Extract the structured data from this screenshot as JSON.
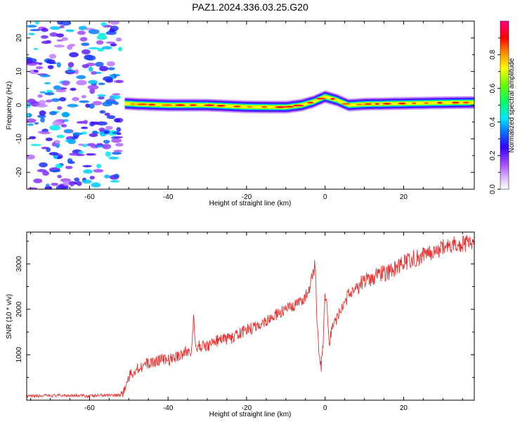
{
  "title": "PAZ1.2024.336.03.25.G20",
  "chart_data": [
    {
      "type": "heatmap",
      "xlabel": "Height of straight line (km)",
      "ylabel": "Frequency (Hz)",
      "xlim": [
        -76,
        38
      ],
      "ylim": [
        -25,
        25
      ],
      "xticks": [
        -60,
        -40,
        -20,
        0,
        20
      ],
      "yticks": [
        -20,
        -10,
        0,
        10,
        20
      ],
      "colorbar": {
        "label": "Normalized spectral amplitude",
        "ticks": [
          0.0,
          0.2,
          0.4,
          0.6,
          0.8
        ],
        "range": [
          0,
          1
        ],
        "colormap": "white-purple-blue-cyan-green-yellow-red-magenta"
      },
      "signal_ridge": {
        "x": [
          -51,
          -48,
          -40,
          -30,
          -20,
          -10,
          -6,
          -3,
          0,
          3,
          6,
          10,
          20,
          30,
          38
        ],
        "frequency": [
          0.5,
          0.3,
          0.0,
          0.0,
          -0.5,
          -0.6,
          0.0,
          1.0,
          2.5,
          1.5,
          0.0,
          0.3,
          0.5,
          0.7,
          0.8
        ],
        "peak_amplitude": 0.95
      },
      "noise_region": {
        "x_range": [
          -76,
          -52
        ],
        "freq_range": [
          -25,
          25
        ],
        "amplitude_range": [
          0.1,
          0.45
        ]
      },
      "grid": false
    },
    {
      "type": "line",
      "xlabel": "Height of straight line (km)",
      "ylabel": "SNR (10 * v/v)",
      "xlim": [
        -76,
        38
      ],
      "ylim": [
        0,
        3700
      ],
      "xticks": [
        -60,
        -40,
        -20,
        0,
        20
      ],
      "yticks": [
        1000,
        2000,
        3000
      ],
      "series_color": "#e8312f",
      "series": [
        {
          "x": [
            -76,
            -70,
            -65,
            -60,
            -55,
            -52,
            -51,
            -50,
            -48,
            -46,
            -44,
            -42,
            -40,
            -38,
            -36,
            -34,
            -33.5,
            -33,
            -32,
            -30,
            -28,
            -26,
            -24,
            -22,
            -20,
            -18,
            -16,
            -14,
            -12,
            -10,
            -8,
            -6,
            -5,
            -4,
            -3,
            -2.5,
            -2,
            -1.5,
            -1,
            -0.5,
            0,
            0.5,
            1,
            2,
            3,
            4,
            5,
            6,
            8,
            10,
            12,
            14,
            16,
            18,
            20,
            22,
            24,
            26,
            28,
            30,
            32,
            34,
            36,
            38
          ],
          "y": [
            80,
            100,
            110,
            90,
            120,
            110,
            250,
            500,
            700,
            780,
            830,
            900,
            880,
            950,
            1050,
            1100,
            1850,
            1100,
            1200,
            1200,
            1300,
            1350,
            1350,
            1450,
            1550,
            1600,
            1700,
            1800,
            1900,
            2000,
            2050,
            2200,
            2300,
            2400,
            2800,
            3050,
            1600,
            1000,
            700,
            1300,
            2300,
            2000,
            1200,
            1700,
            1800,
            2000,
            2100,
            2350,
            2500,
            2600,
            2700,
            2800,
            2800,
            2900,
            3000,
            3100,
            3150,
            3250,
            3300,
            3350,
            3400,
            3450,
            3450,
            3500
          ]
        }
      ],
      "grid": false
    }
  ]
}
